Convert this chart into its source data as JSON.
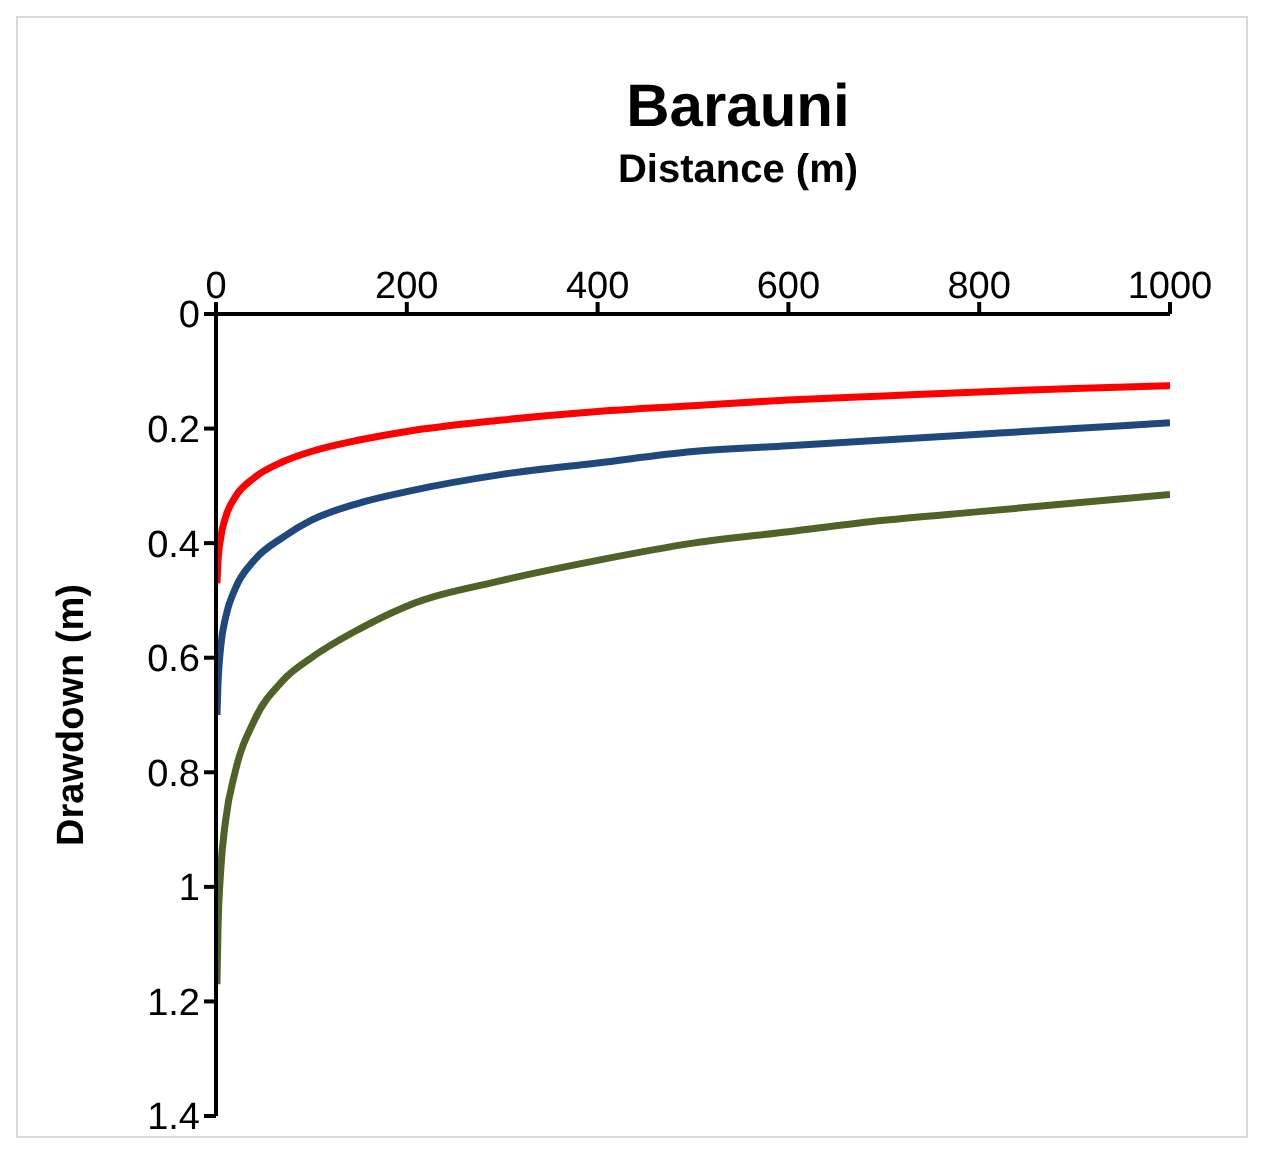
{
  "chart_data": {
    "type": "line",
    "title": "Barauni",
    "xlabel": "Distance (m)",
    "ylabel": "Drawdown (m)",
    "x": [
      1,
      2,
      5,
      10,
      20,
      40,
      70,
      100,
      150,
      200,
      300,
      400,
      500,
      600,
      700,
      800,
      900,
      1000
    ],
    "series": [
      {
        "color": "#ff0000",
        "values": [
          0.47,
          0.435,
          0.39,
          0.355,
          0.32,
          0.286,
          0.258,
          0.24,
          0.22,
          0.205,
          0.185,
          0.17,
          0.16,
          0.15,
          0.143,
          0.136,
          0.13,
          0.125
        ]
      },
      {
        "color": "#1f497d",
        "values": [
          0.7,
          0.65,
          0.58,
          0.53,
          0.48,
          0.43,
          0.39,
          0.36,
          0.33,
          0.31,
          0.28,
          0.26,
          0.24,
          0.23,
          0.22,
          0.21,
          0.2,
          0.19
        ]
      },
      {
        "color": "#4f6228",
        "values": [
          1.17,
          1.08,
          0.97,
          0.885,
          0.8,
          0.71,
          0.64,
          0.6,
          0.55,
          0.51,
          0.465,
          0.43,
          0.4,
          0.38,
          0.36,
          0.345,
          0.33,
          0.315
        ]
      }
    ],
    "xlim": [
      0,
      1000
    ],
    "xticks": [
      0,
      200,
      400,
      600,
      800,
      1000
    ],
    "ylim": [
      1.4,
      0
    ],
    "yticks": [
      0,
      0.2,
      0.4,
      0.6,
      0.8,
      1,
      1.2,
      1.4
    ],
    "grid": false,
    "legend": false,
    "marker": "none",
    "line_style": "solid"
  }
}
